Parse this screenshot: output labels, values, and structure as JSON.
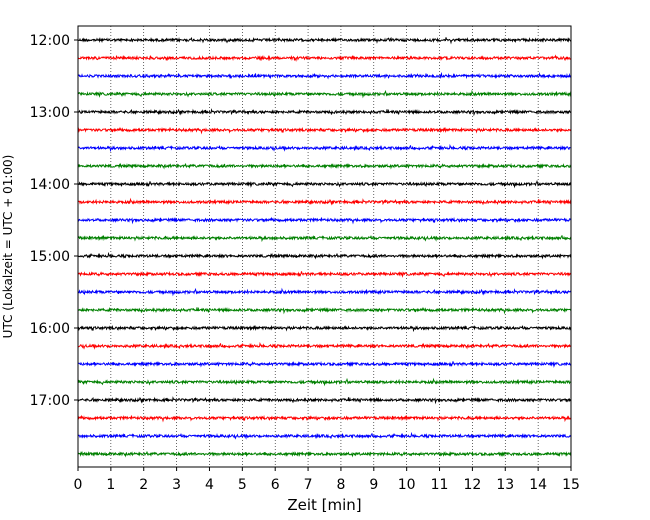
{
  "chart_data": {
    "type": "line",
    "title": "",
    "xlabel": "Zeit  [min]",
    "ylabel": "UTC (Lokalzeit = UTC + 01:00)",
    "xlim": [
      0,
      15
    ],
    "x_ticks": [
      "0",
      "1",
      "2",
      "3",
      "4",
      "5",
      "6",
      "7",
      "8",
      "9",
      "10",
      "11",
      "12",
      "13",
      "14",
      "15"
    ],
    "y_tick_labels": [
      "12:00",
      "13:00",
      "14:00",
      "15:00",
      "16:00",
      "17:00"
    ],
    "grid": "vertical-dotted",
    "legend": "none",
    "trace_colors": [
      "#000000",
      "#ff0000",
      "#0000ff",
      "#008000"
    ],
    "series": [
      {
        "start": "12:00",
        "color": "#000000"
      },
      {
        "start": "12:15",
        "color": "#ff0000"
      },
      {
        "start": "12:30",
        "color": "#0000ff"
      },
      {
        "start": "12:45",
        "color": "#008000"
      },
      {
        "start": "13:00",
        "color": "#000000"
      },
      {
        "start": "13:15",
        "color": "#ff0000"
      },
      {
        "start": "13:30",
        "color": "#0000ff"
      },
      {
        "start": "13:45",
        "color": "#008000"
      },
      {
        "start": "14:00",
        "color": "#000000"
      },
      {
        "start": "14:15",
        "color": "#ff0000"
      },
      {
        "start": "14:30",
        "color": "#0000ff"
      },
      {
        "start": "14:45",
        "color": "#008000"
      },
      {
        "start": "15:00",
        "color": "#000000"
      },
      {
        "start": "15:15",
        "color": "#ff0000"
      },
      {
        "start": "15:30",
        "color": "#0000ff"
      },
      {
        "start": "15:45",
        "color": "#008000"
      },
      {
        "start": "16:00",
        "color": "#000000"
      },
      {
        "start": "16:15",
        "color": "#ff0000"
      },
      {
        "start": "16:30",
        "color": "#0000ff"
      },
      {
        "start": "16:45",
        "color": "#008000"
      },
      {
        "start": "17:00",
        "color": "#000000"
      },
      {
        "start": "17:15",
        "color": "#ff0000"
      },
      {
        "start": "17:30",
        "color": "#0000ff"
      },
      {
        "start": "17:45",
        "color": "#008000"
      }
    ]
  }
}
